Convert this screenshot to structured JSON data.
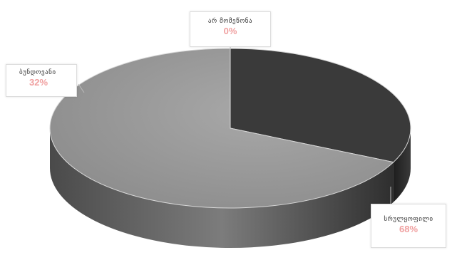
{
  "chart_data": {
    "type": "pie",
    "categories": [
      "არ მომეწონა",
      "ბუნდოვანი",
      "სრულყოფილი"
    ],
    "values": [
      0,
      32,
      68
    ],
    "value_labels": [
      "0%",
      "32%",
      "68%"
    ],
    "colors": [
      "#5a5a5a",
      "#3a3a3a",
      "#9a9a9a"
    ],
    "label_color": "#f0a0a0",
    "style": "3d",
    "legend": "none"
  }
}
